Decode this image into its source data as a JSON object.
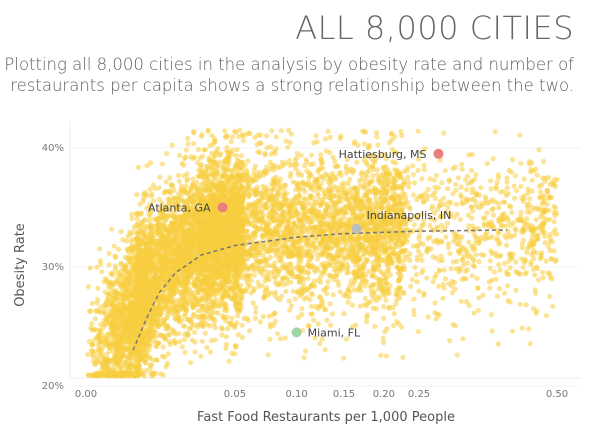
{
  "header": {
    "title": "ALL 8,000 CITIES",
    "subtitle": "Plotting all 8,000 cities in the analysis by obesity rate and number of restaurants per capita shows a strong relationship between the two."
  },
  "colors": {
    "dots": "#f7cd3f",
    "trend": "#777777",
    "atlanta": "#e97f7d",
    "hattiesburg": "#e97f7d",
    "indianapolis": "#bdbdbd",
    "miami": "#9fd4a5",
    "grid": "#ececec"
  },
  "chart_data": {
    "type": "scatter",
    "title": "ALL 8,000 CITIES",
    "subtitle": "Plotting all 8,000 cities in the analysis by obesity rate and number of restaurants per capita shows a strong relationship between the two.",
    "xlabel": "Fast Food Restaurants per 1,000 People",
    "ylabel": "Obesity Rate",
    "x_scale": "sqrt",
    "xlim": [
      0,
      0.5
    ],
    "ylim": [
      19.5,
      42
    ],
    "x_ticks": [
      {
        "value": 0.0,
        "label": "0.00"
      },
      {
        "value": 0.05,
        "label": "0.05"
      },
      {
        "value": 0.1,
        "label": "0.10"
      },
      {
        "value": 0.15,
        "label": "0.15"
      },
      {
        "value": 0.2,
        "label": "0.20"
      },
      {
        "value": 0.25,
        "label": "0.25"
      },
      {
        "value": 0.5,
        "label": "0.50"
      }
    ],
    "y_ticks": [
      {
        "value": 20,
        "label": "20%"
      },
      {
        "value": 30,
        "label": "30%"
      },
      {
        "value": 40,
        "label": "40%"
      }
    ],
    "point_count": 8000,
    "trend_line": {
      "style": "dashed",
      "points": [
        [
          0.005,
          23.0
        ],
        [
          0.008,
          25.5
        ],
        [
          0.012,
          27.8
        ],
        [
          0.018,
          29.5
        ],
        [
          0.03,
          31.0
        ],
        [
          0.05,
          31.8
        ],
        [
          0.1,
          32.5
        ],
        [
          0.15,
          32.8
        ],
        [
          0.25,
          33.0
        ],
        [
          0.4,
          33.1
        ]
      ]
    },
    "highlighted_cities": [
      {
        "name": "Hattiesburg, MS",
        "x": 0.28,
        "y": 39.5,
        "color_key": "hattiesburg",
        "label_side": "left"
      },
      {
        "name": "Atlanta, GA",
        "x": 0.042,
        "y": 35.0,
        "color_key": "atlanta",
        "label_side": "left"
      },
      {
        "name": "Indianapolis, IN",
        "x": 0.165,
        "y": 33.2,
        "color_key": "indianapolis",
        "label_side": "above-right"
      },
      {
        "name": "Miami, FL",
        "x": 0.1,
        "y": 24.5,
        "color_key": "miami",
        "label_side": "right"
      }
    ]
  }
}
